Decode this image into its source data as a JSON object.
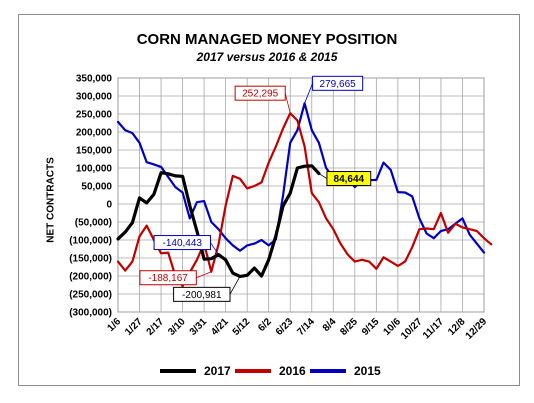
{
  "chart_data": {
    "type": "line",
    "title": "CORN MANAGED MONEY POSITION",
    "subtitle": "2017 versus 2016 & 2015",
    "ylabel": "NET CONTRACTS",
    "xlabel": "",
    "ylim": [
      -300000,
      350000
    ],
    "yticks": [
      350000,
      300000,
      250000,
      200000,
      150000,
      100000,
      50000,
      0,
      -50000,
      -100000,
      -150000,
      -200000,
      -250000,
      -300000
    ],
    "ytick_labels": [
      "350,000",
      "300,000",
      "250,000",
      "200,000",
      "150,000",
      "100,000",
      "50,000",
      "0",
      "(50,000)",
      "(100,000)",
      "(150,000)",
      "(200,000)",
      "(250,000)",
      "(300,000)"
    ],
    "xticks": [
      1,
      4,
      7,
      10,
      13,
      16,
      19,
      22,
      25,
      28,
      31,
      34,
      37,
      40,
      43,
      46,
      49,
      52
    ],
    "xtick_labels": [
      "1/6",
      "1/27",
      "2/17",
      "3/10",
      "3/31",
      "4/21",
      "5/12",
      "6/2",
      "6/23",
      "7/14",
      "8/4",
      "8/25",
      "9/15",
      "10/6",
      "10/27",
      "11/17",
      "12/8",
      "12/29"
    ],
    "grid": true,
    "legend_position": "bottom",
    "series": [
      {
        "name": "2017",
        "color": "#000000",
        "values": [
          -97000,
          -78000,
          -52000,
          17000,
          3000,
          27000,
          87000,
          84000,
          78000,
          77000,
          -5000,
          -75000,
          -153000,
          -152000,
          -140443,
          -155000,
          -192000,
          -200981,
          -198000,
          -178000,
          -200000,
          -155000,
          -88000,
          -5000,
          30000,
          100000,
          105000,
          106000,
          84644
        ]
      },
      {
        "name": "2016",
        "color": "#c00000",
        "values": [
          -160000,
          -185000,
          -160000,
          -90000,
          -60000,
          -100000,
          -137000,
          -135000,
          -200000,
          -228000,
          -190000,
          -155000,
          -110000,
          -188167,
          -112000,
          -5000,
          78000,
          70000,
          43000,
          50000,
          60000,
          115000,
          160000,
          210000,
          252295,
          232000,
          160000,
          30000,
          5000,
          -40000,
          -70000,
          -110000,
          -140000,
          -160000,
          -155000,
          -160000,
          -180000,
          -148000,
          -160000,
          -172000,
          -160000,
          -120000,
          -70000,
          -68000,
          -70000,
          -25000,
          -80000,
          -55000,
          -65000,
          -70000,
          -75000,
          -95000,
          -112000
        ]
      },
      {
        "name": "2015",
        "color": "#0000c0",
        "values": [
          228000,
          205000,
          197000,
          170000,
          116000,
          110000,
          103000,
          75000,
          47000,
          32000,
          -40000,
          5000,
          8000,
          -50000,
          -70000,
          -95000,
          -115000,
          -130000,
          -115000,
          -110000,
          -100000,
          -115000,
          -98000,
          25000,
          170000,
          205000,
          279665,
          205000,
          170000,
          100000,
          73000,
          72000,
          73000,
          47000,
          68000,
          66000,
          67000,
          115000,
          95000,
          33000,
          32000,
          21000,
          -40000,
          -82000,
          -95000,
          -75000,
          -70000,
          -55000,
          -40000,
          -85000,
          -110000,
          -135000
        ]
      }
    ],
    "annotations": [
      {
        "text": "252,295",
        "series": "2016",
        "x": 25,
        "color": "#c00000"
      },
      {
        "text": "279,665",
        "series": "2015",
        "x": 27,
        "color": "#0000c0"
      },
      {
        "text": "84,644",
        "series": "2017",
        "x": 29,
        "color": "#000000",
        "highlight": "#ffff00"
      },
      {
        "text": "-140,443",
        "series": "2017",
        "x": 15,
        "color": "#0000c0"
      },
      {
        "text": "-188,167",
        "series": "2016",
        "x": 14,
        "color": "#c00000"
      },
      {
        "text": "-200,981",
        "series": "2017",
        "x": 18,
        "color": "#000000"
      }
    ]
  }
}
